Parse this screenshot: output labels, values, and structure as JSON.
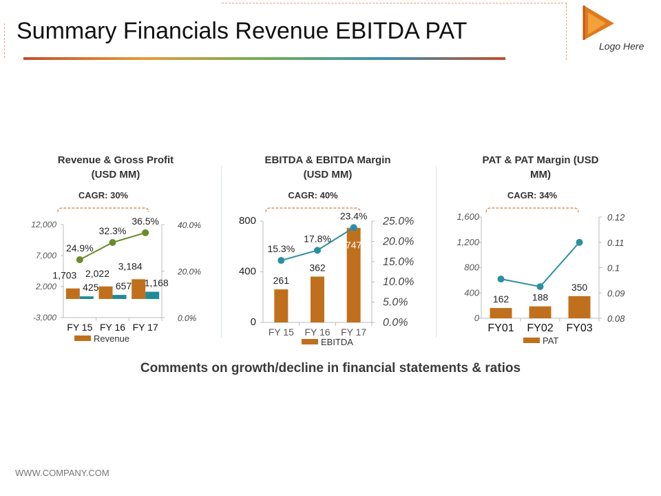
{
  "header": {
    "title": "Summary Financials Revenue EBITDA PAT",
    "logo_text": "Logo Here"
  },
  "comment": "Comments on growth/decline in financial statements & ratios",
  "footer": "WWW.COMPANY.COM",
  "colors": {
    "bar": "#c0701c",
    "bar2": "#1f8a99",
    "revenue_line": "#6b8a2a",
    "margin_line": "#2b8fa2"
  },
  "chart_data": [
    {
      "type": "bar",
      "title": "Revenue & Gross Profit (USD MM)",
      "cagr": "CAGR: 30%",
      "categories": [
        "FY 15",
        "FY 16",
        "FY 17"
      ],
      "series": [
        {
          "name": "Revenue",
          "type": "bar",
          "values": [
            1703,
            2022,
            3184
          ],
          "labels": [
            "1,703",
            "2,022",
            "3,184"
          ]
        },
        {
          "type": "bar",
          "values": [
            425,
            657,
            1168
          ],
          "labels": [
            "425",
            "657",
            "1,168"
          ]
        },
        {
          "type": "line",
          "axis": "right",
          "values": [
            0.249,
            0.323,
            0.365
          ],
          "labels": [
            "24.9%",
            "32.3%",
            "36.5%"
          ]
        }
      ],
      "ylim": [
        -3000,
        12000
      ],
      "yticks": [
        "12,000",
        "7,000",
        "2,000",
        "-3,000"
      ],
      "ylim_right": [
        0,
        0.4
      ],
      "yticks_right": [
        "40.0%",
        "20.0%",
        "0.0%"
      ],
      "legend": [
        "Revenue"
      ]
    },
    {
      "type": "bar",
      "title": "EBITDA & EBITDA Margin (USD MM)",
      "cagr": "CAGR: 40%",
      "categories": [
        "FY 15",
        "FY 16",
        "FY 17"
      ],
      "series": [
        {
          "name": "EBITDA",
          "type": "bar",
          "values": [
            261,
            362,
            747
          ],
          "labels": [
            "261",
            "362",
            "747"
          ]
        },
        {
          "type": "line",
          "axis": "right",
          "values": [
            0.153,
            0.178,
            0.234
          ],
          "labels": [
            "15.3%",
            "17.8%",
            "23.4%"
          ]
        }
      ],
      "ylim": [
        0,
        800
      ],
      "yticks": [
        "800",
        "400",
        "0"
      ],
      "ylim_right": [
        0,
        0.25
      ],
      "yticks_right": [
        "25.0%",
        "20.0%",
        "15.0%",
        "10.0%",
        "5.0%",
        "0.0%"
      ],
      "legend": [
        "EBITDA"
      ]
    },
    {
      "type": "bar",
      "title": "PAT & PAT Margin (USD MM)",
      "cagr": "CAGR: 34%",
      "categories": [
        "FY01",
        "FY02",
        "FY03"
      ],
      "series": [
        {
          "name": "PAT",
          "type": "bar",
          "values": [
            162,
            188,
            350
          ],
          "labels": [
            "162",
            "188",
            "350"
          ]
        },
        {
          "type": "line",
          "axis": "right",
          "values": [
            0.0955,
            0.0925,
            0.11
          ]
        }
      ],
      "ylim": [
        0,
        1600
      ],
      "yticks": [
        "1,600",
        "1,200",
        "800",
        "400",
        "0"
      ],
      "ylim_right": [
        0.08,
        0.12
      ],
      "yticks_right": [
        "0.12",
        "0.11",
        "0.1",
        "0.09",
        "0.08"
      ],
      "legend": [
        "PAT"
      ]
    }
  ]
}
